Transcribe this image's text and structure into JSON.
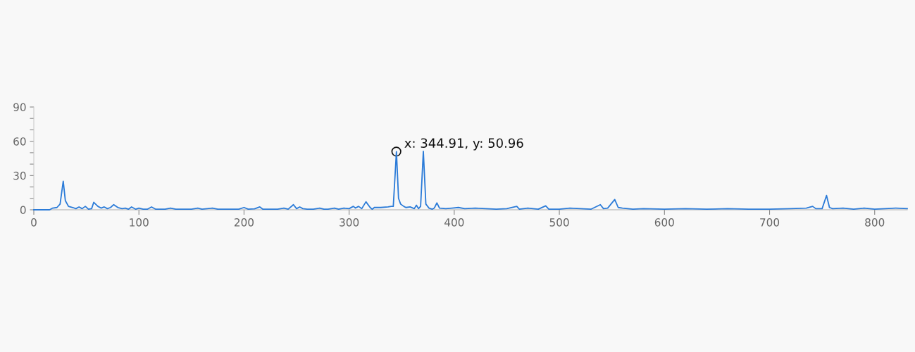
{
  "chart_data": {
    "type": "line",
    "series": [
      {
        "color": "#2b7bd8",
        "x": [
          0,
          15,
          18,
          22,
          25,
          28,
          30,
          33,
          37,
          40,
          43,
          46,
          49,
          52,
          55,
          57,
          61,
          64,
          67,
          70,
          73,
          76,
          80,
          84,
          87,
          90,
          93,
          97,
          100,
          104,
          108,
          112,
          116,
          125,
          130,
          135,
          150,
          156,
          160,
          170,
          175,
          195,
          200,
          204,
          210,
          215,
          218,
          232,
          238,
          242,
          247,
          250,
          253,
          256,
          260,
          266,
          272,
          276,
          280,
          286,
          290,
          295,
          300,
          304,
          306,
          309,
          312,
          316,
          320,
          322,
          324,
          330,
          337,
          340,
          342,
          345,
          347,
          349,
          352,
          354,
          358,
          362,
          364,
          366,
          368,
          370.6,
          373,
          376,
          379,
          381,
          383.5,
          386,
          392,
          398,
          404,
          410,
          420,
          430,
          440,
          450,
          459.5,
          462,
          470,
          480,
          487,
          490,
          500,
          510,
          520,
          530,
          539,
          542,
          546,
          552.7,
          556,
          560,
          570,
          580,
          600,
          620,
          640,
          660,
          680,
          700,
          720,
          735,
          741,
          744,
          750,
          754.2,
          757,
          760,
          770,
          780,
          790,
          800,
          810,
          820,
          831
        ],
        "values": [
          0,
          0,
          1.5,
          2,
          5,
          25,
          8,
          3,
          2,
          1,
          2.5,
          1,
          3,
          0.5,
          1,
          6.5,
          3,
          1.5,
          2.5,
          1,
          2,
          4.5,
          2,
          1,
          1.5,
          0.5,
          2.5,
          0.5,
          1.5,
          0.5,
          0.5,
          2.5,
          0.5,
          0.5,
          1.5,
          0.5,
          0.5,
          1.5,
          0.5,
          1.5,
          0.5,
          0.5,
          2,
          0.5,
          0.8,
          2.5,
          0.5,
          0.5,
          1.5,
          0.5,
          4.5,
          1,
          2.5,
          1,
          0.5,
          0.5,
          1.5,
          0.5,
          0.5,
          1.5,
          0.5,
          1.5,
          1,
          3,
          1.5,
          3,
          1,
          7,
          2,
          0.5,
          2,
          2,
          2.5,
          3,
          3,
          50.96,
          10,
          5,
          3,
          2,
          2.5,
          1,
          4,
          1,
          3,
          51.2,
          5,
          1.5,
          0.5,
          1.5,
          6,
          1.5,
          1,
          1.5,
          2,
          1,
          1.5,
          1,
          0.5,
          1,
          3,
          0.5,
          1.5,
          0.5,
          3.5,
          0.5,
          0.5,
          1.5,
          1,
          0.5,
          4.5,
          1,
          1.5,
          9,
          2,
          1.5,
          0.5,
          1,
          0.5,
          1,
          0.5,
          1,
          0.5,
          0.5,
          1,
          1.5,
          3,
          1,
          1,
          12.5,
          2,
          1,
          1.5,
          0.5,
          1.5,
          0.5,
          1,
          1.5,
          1
        ]
      }
    ],
    "annotations": [
      {
        "text": "x: 344.91, y: 50.96",
        "x": 344.91,
        "y": 50.96
      }
    ],
    "xlim": [
      0,
      831
    ],
    "xticks": [
      0,
      100,
      200,
      300,
      400,
      500,
      600,
      700,
      800
    ],
    "ylim": [
      0,
      90
    ],
    "yticks": [
      0,
      {
        "value": 10,
        "label": null
      },
      {
        "value": 20,
        "label": null
      },
      30,
      {
        "value": 40,
        "label": null
      },
      {
        "value": 50,
        "label": null
      },
      60,
      {
        "value": 70,
        "label": null
      },
      {
        "value": 80,
        "label": null
      },
      90
    ],
    "grid": false,
    "marker": "none",
    "line_style": "solid"
  }
}
